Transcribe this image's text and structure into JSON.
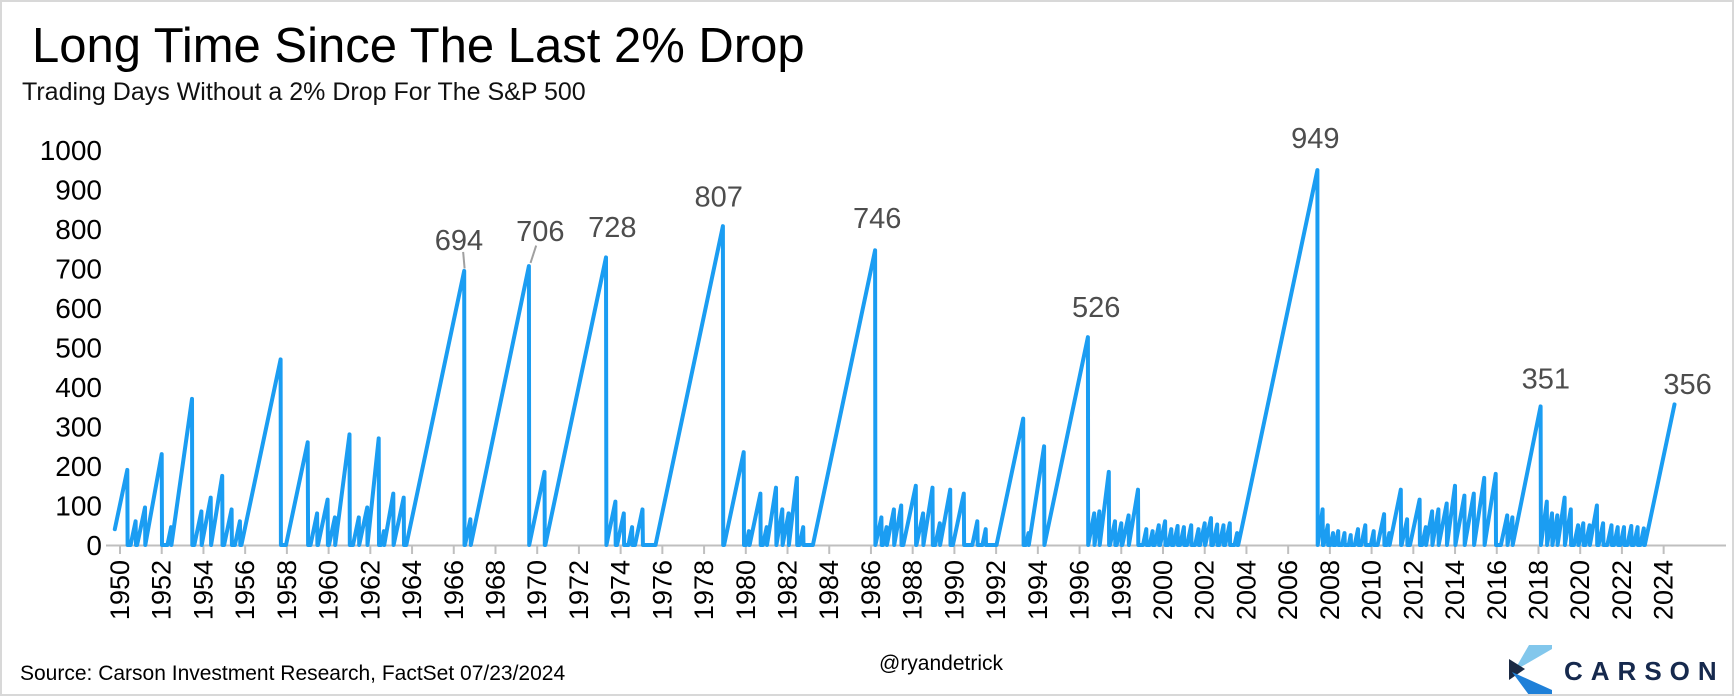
{
  "header": {
    "title": "Long Time Since The Last 2% Drop",
    "subtitle": "Trading Days Without a 2% Drop For The S&P 500"
  },
  "footer": {
    "source": "Source: Carson Investment Research, FactSet 07/23/2024",
    "handle": "@ryandetrick",
    "brand": "CARSON"
  },
  "colors": {
    "line": "#1b9df2",
    "axis": "#bfbfbf",
    "annotation": "#4d4d4d",
    "leader": "#a0a0a0",
    "brand_navy": "#16294d",
    "logo_light_blue": "#82c7ec",
    "logo_bright_blue": "#1f80d8",
    "logo_navy": "#1b2a44"
  },
  "chart_data": {
    "type": "line",
    "title": "Long Time Since The Last 2% Drop",
    "subtitle": "Trading Days Without a 2% Drop For The S&P 500",
    "legend": "none",
    "grid": "off",
    "x_axis": {
      "range": [
        1949.75,
        2025.9
      ],
      "tick_step_years": 2,
      "ticks": [
        1950,
        1952,
        1954,
        1956,
        1958,
        1960,
        1962,
        1964,
        1966,
        1968,
        1970,
        1972,
        1974,
        1976,
        1978,
        1980,
        1982,
        1984,
        1986,
        1988,
        1990,
        1992,
        1994,
        1996,
        1998,
        2000,
        2002,
        2004,
        2006,
        2008,
        2010,
        2012,
        2014,
        2016,
        2018,
        2020,
        2022,
        2024
      ],
      "label_rotation_deg": 90
    },
    "y_axis": {
      "range": [
        0,
        1000
      ],
      "ticks": [
        0,
        100,
        200,
        300,
        400,
        500,
        600,
        700,
        800,
        900,
        1000
      ]
    },
    "series": [
      {
        "name": "Trading days without a 2% drop for the S&P 500",
        "format": "teeth = [approx_year_of_streak_end, streak_length_in_trading_days]; value climbs ~250/yr from 0 and resets to 0 at each 2% drop; final streak is ongoing (no reset)",
        "teeth": [
          [
            1950.35,
            190
          ],
          [
            1950.75,
            60
          ],
          [
            1951.2,
            95
          ],
          [
            1952.0,
            230
          ],
          [
            1952.45,
            45
          ],
          [
            1953.45,
            370
          ],
          [
            1953.9,
            85
          ],
          [
            1954.35,
            120
          ],
          [
            1954.9,
            175
          ],
          [
            1955.35,
            90
          ],
          [
            1955.75,
            60
          ],
          [
            1957.7,
            470
          ],
          [
            1959.0,
            260
          ],
          [
            1959.45,
            80
          ],
          [
            1959.95,
            115
          ],
          [
            1960.3,
            70
          ],
          [
            1961.0,
            280
          ],
          [
            1961.45,
            70
          ],
          [
            1961.85,
            95
          ],
          [
            1962.4,
            270
          ],
          [
            1962.65,
            35
          ],
          [
            1963.1,
            130
          ],
          [
            1963.6,
            120
          ],
          [
            1966.5,
            694
          ],
          [
            1966.8,
            65
          ],
          [
            1969.6,
            706
          ],
          [
            1970.35,
            185
          ],
          [
            1973.3,
            728
          ],
          [
            1973.75,
            110
          ],
          [
            1974.15,
            80
          ],
          [
            1974.55,
            45
          ],
          [
            1975.05,
            90
          ],
          [
            1978.9,
            807
          ],
          [
            1979.9,
            235
          ],
          [
            1980.15,
            35
          ],
          [
            1980.7,
            130
          ],
          [
            1981.0,
            45
          ],
          [
            1981.45,
            145
          ],
          [
            1981.75,
            90
          ],
          [
            1982.05,
            80
          ],
          [
            1982.45,
            170
          ],
          [
            1982.75,
            45
          ],
          [
            1986.2,
            746
          ],
          [
            1986.5,
            70
          ],
          [
            1986.75,
            45
          ],
          [
            1987.1,
            90
          ],
          [
            1987.45,
            100
          ],
          [
            1988.15,
            150
          ],
          [
            1988.5,
            80
          ],
          [
            1988.95,
            145
          ],
          [
            1989.3,
            55
          ],
          [
            1989.8,
            140
          ],
          [
            1990.45,
            130
          ],
          [
            1991.1,
            60
          ],
          [
            1991.5,
            40
          ],
          [
            1993.3,
            320
          ],
          [
            1993.55,
            30
          ],
          [
            1994.3,
            250
          ],
          [
            1996.4,
            526
          ],
          [
            1996.7,
            80
          ],
          [
            1996.95,
            85
          ],
          [
            1997.4,
            185
          ],
          [
            1997.7,
            60
          ],
          [
            1998.0,
            55
          ],
          [
            1998.35,
            75
          ],
          [
            1998.8,
            140
          ],
          [
            1999.2,
            40
          ],
          [
            1999.5,
            35
          ],
          [
            1999.8,
            50
          ],
          [
            2000.1,
            60
          ],
          [
            2000.4,
            40
          ],
          [
            2000.7,
            48
          ],
          [
            2001.0,
            45
          ],
          [
            2001.35,
            50
          ],
          [
            2001.7,
            40
          ],
          [
            2002.0,
            55
          ],
          [
            2002.3,
            68
          ],
          [
            2002.6,
            52
          ],
          [
            2002.9,
            50
          ],
          [
            2003.2,
            55
          ],
          [
            2003.55,
            30
          ],
          [
            2007.4,
            949
          ],
          [
            2007.65,
            90
          ],
          [
            2007.9,
            50
          ],
          [
            2008.15,
            30
          ],
          [
            2008.4,
            35
          ],
          [
            2008.7,
            30
          ],
          [
            2009.0,
            25
          ],
          [
            2009.35,
            40
          ],
          [
            2009.7,
            50
          ],
          [
            2010.1,
            35
          ],
          [
            2010.6,
            78
          ],
          [
            2010.85,
            30
          ],
          [
            2011.4,
            140
          ],
          [
            2011.7,
            65
          ],
          [
            2012.3,
            115
          ],
          [
            2012.6,
            45
          ],
          [
            2012.9,
            85
          ],
          [
            2013.2,
            90
          ],
          [
            2013.6,
            105
          ],
          [
            2014.0,
            150
          ],
          [
            2014.45,
            125
          ],
          [
            2014.9,
            130
          ],
          [
            2015.4,
            170
          ],
          [
            2015.95,
            180
          ],
          [
            2016.5,
            75
          ],
          [
            2016.75,
            70
          ],
          [
            2018.1,
            351
          ],
          [
            2018.4,
            110
          ],
          [
            2018.65,
            80
          ],
          [
            2018.9,
            75
          ],
          [
            2019.25,
            120
          ],
          [
            2019.55,
            90
          ],
          [
            2019.9,
            50
          ],
          [
            2020.15,
            55
          ],
          [
            2020.45,
            50
          ],
          [
            2020.8,
            100
          ],
          [
            2021.1,
            55
          ],
          [
            2021.5,
            50
          ],
          [
            2021.8,
            45
          ],
          [
            2022.1,
            45
          ],
          [
            2022.45,
            48
          ],
          [
            2022.75,
            45
          ],
          [
            2023.05,
            42
          ],
          [
            2024.52,
            356
          ]
        ]
      }
    ],
    "annotations": [
      {
        "label": "694",
        "x": 1966.25,
        "y": 772,
        "leader": [
          [
            1966.45,
            742
          ],
          [
            1966.52,
            700
          ]
        ]
      },
      {
        "label": "706",
        "x": 1970.15,
        "y": 795,
        "leader": [
          [
            1969.95,
            758
          ],
          [
            1969.68,
            714
          ]
        ]
      },
      {
        "label": "728",
        "x": 1973.6,
        "y": 805,
        "leader": null
      },
      {
        "label": "807",
        "x": 1978.7,
        "y": 882,
        "leader": null
      },
      {
        "label": "746",
        "x": 1986.3,
        "y": 828,
        "leader": null
      },
      {
        "label": "526",
        "x": 1996.8,
        "y": 602,
        "leader": null
      },
      {
        "label": "949",
        "x": 2007.3,
        "y": 1030,
        "leader": null
      },
      {
        "label": "351",
        "x": 2018.35,
        "y": 422,
        "leader": null
      },
      {
        "label": "356",
        "x": 2025.15,
        "y": 408,
        "leader": null
      }
    ]
  }
}
